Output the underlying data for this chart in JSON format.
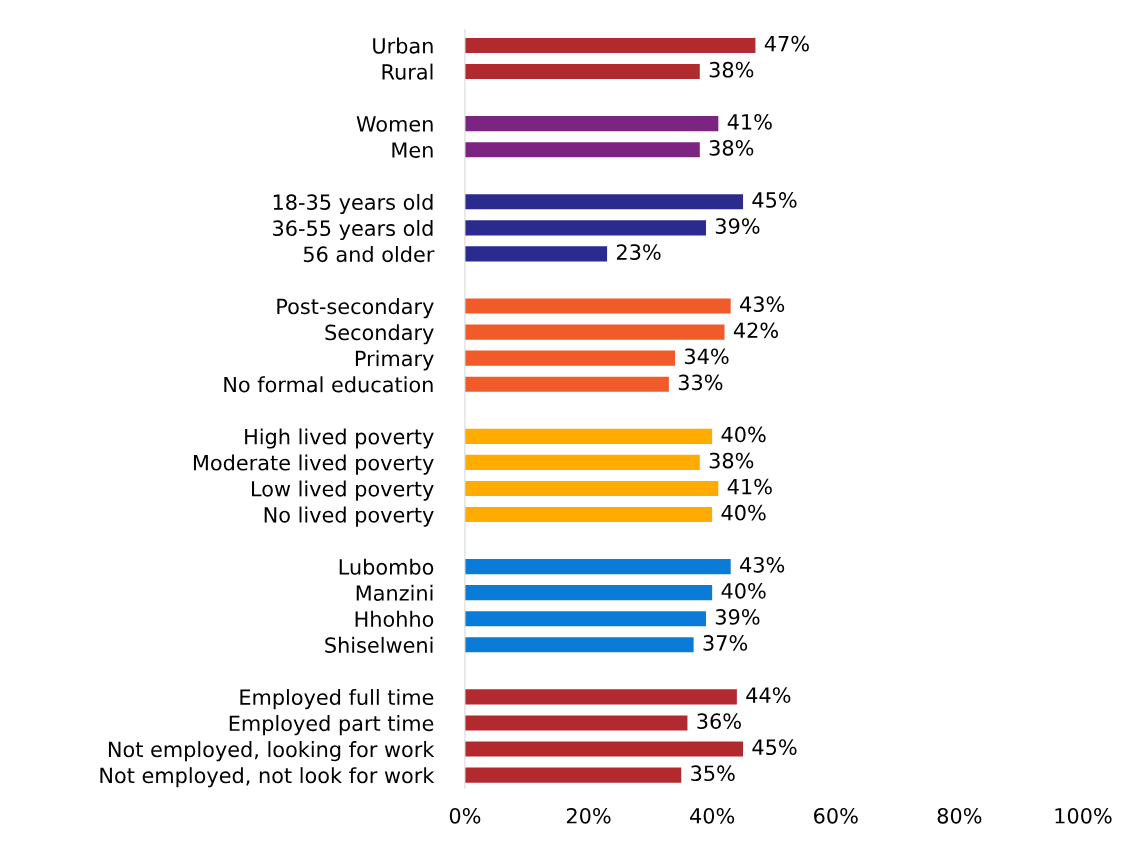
{
  "chart_data": {
    "type": "bar",
    "orientation": "horizontal",
    "categories": [
      "Urban",
      "Rural",
      null,
      "Women",
      "Men",
      null,
      "18-35 years old",
      "36-55 years old",
      "56 and older",
      null,
      "Post-secondary",
      "Secondary",
      "Primary",
      "No formal education",
      null,
      "High lived poverty",
      "Moderate lived poverty",
      "Low lived poverty",
      "No lived poverty",
      null,
      "Lubombo",
      "Manzini",
      "Hhohho",
      "Shiselweni",
      null,
      "Employed full time",
      "Employed part time",
      "Not employed, looking for work",
      "Not employed, not look for work"
    ],
    "values": [
      47,
      38,
      null,
      41,
      38,
      null,
      45,
      39,
      23,
      null,
      43,
      42,
      34,
      33,
      null,
      40,
      38,
      41,
      40,
      null,
      43,
      40,
      39,
      37,
      null,
      44,
      36,
      45,
      35
    ],
    "value_labels": [
      "47%",
      "38%",
      null,
      "41%",
      "38%",
      null,
      "45%",
      "39%",
      "23%",
      null,
      "43%",
      "42%",
      "34%",
      "33%",
      null,
      "40%",
      "38%",
      "41%",
      "40%",
      null,
      "43%",
      "40%",
      "39%",
      "37%",
      null,
      "44%",
      "36%",
      "45%",
      "35%"
    ],
    "colors": [
      "#b22a2e",
      "#b22a2e",
      null,
      "#7b2481",
      "#7b2481",
      null,
      "#2b2a8f",
      "#2b2a8f",
      "#2b2a8f",
      null,
      "#f15a29",
      "#f15a29",
      "#f15a29",
      "#f15a29",
      null,
      "#ffab00",
      "#ffab00",
      "#ffab00",
      "#ffab00",
      null,
      "#0a7bd6",
      "#0a7bd6",
      "#0a7bd6",
      "#0a7bd6",
      null,
      "#b22a2e",
      "#b22a2e",
      "#b22a2e",
      "#b22a2e"
    ],
    "xlim": [
      0,
      100
    ],
    "xticks": [
      {
        "value": 0,
        "label": "0%"
      },
      {
        "value": 20,
        "label": "20%"
      },
      {
        "value": 40,
        "label": "40%"
      },
      {
        "value": 60,
        "label": "60%"
      },
      {
        "value": 80,
        "label": "80%"
      },
      {
        "value": 100,
        "label": "100%"
      }
    ],
    "grid": false
  }
}
